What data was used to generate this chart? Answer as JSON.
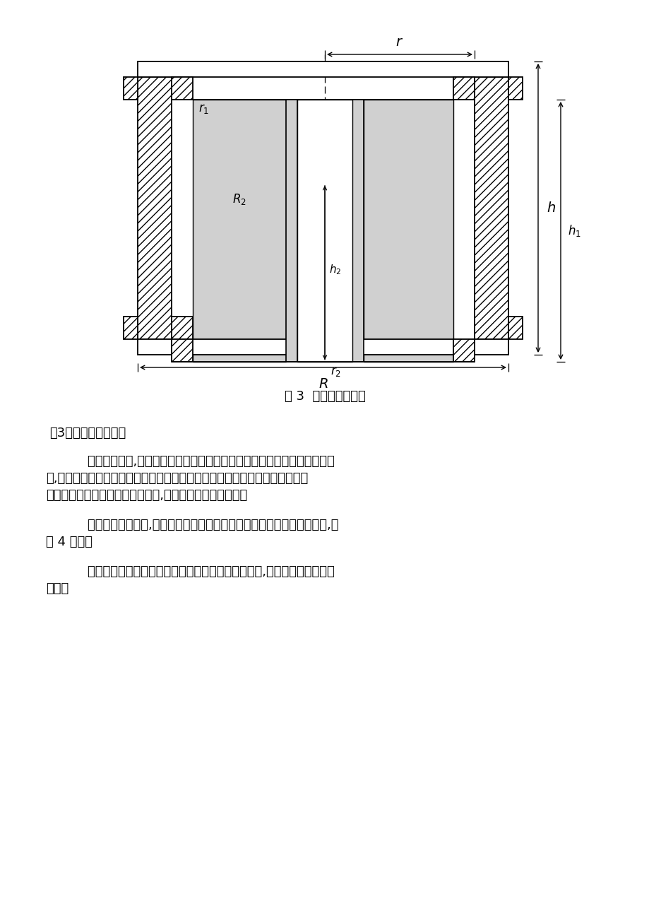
{
  "fig_width": 9.2,
  "fig_height": 13.02,
  "bg_color": "#ffffff",
  "caption": "图 3  钵套几何模型图",
  "para1_title": "（3）冲压机构的设计",
  "para2_line1": "    在冲压部件中,冲压头通过冲压杆上的螺纹与冲压部件中横梁的螺纹孔相联",
  "para2_line2": "结,冲压部件的横梁与曲柄滑块机构铰链连接。曲柄滑块机构的曲柄转动使滑块",
  "para2_line3": "与横梁联结在一起在上下方向滑动,形成制钵机的冲压行程。",
  "para3_line1": "    传统的冲压机构中,只是通过冲压头上一个圆锥凸台来实现假植孔的成型,如",
  "para3_line2": "图 4 所示。",
  "para4_line1": "    新型的冲压头根据营养钵体的假植孔的不同农艺要求,对冲压头进行了改进",
  "para4_line2": "设计。"
}
